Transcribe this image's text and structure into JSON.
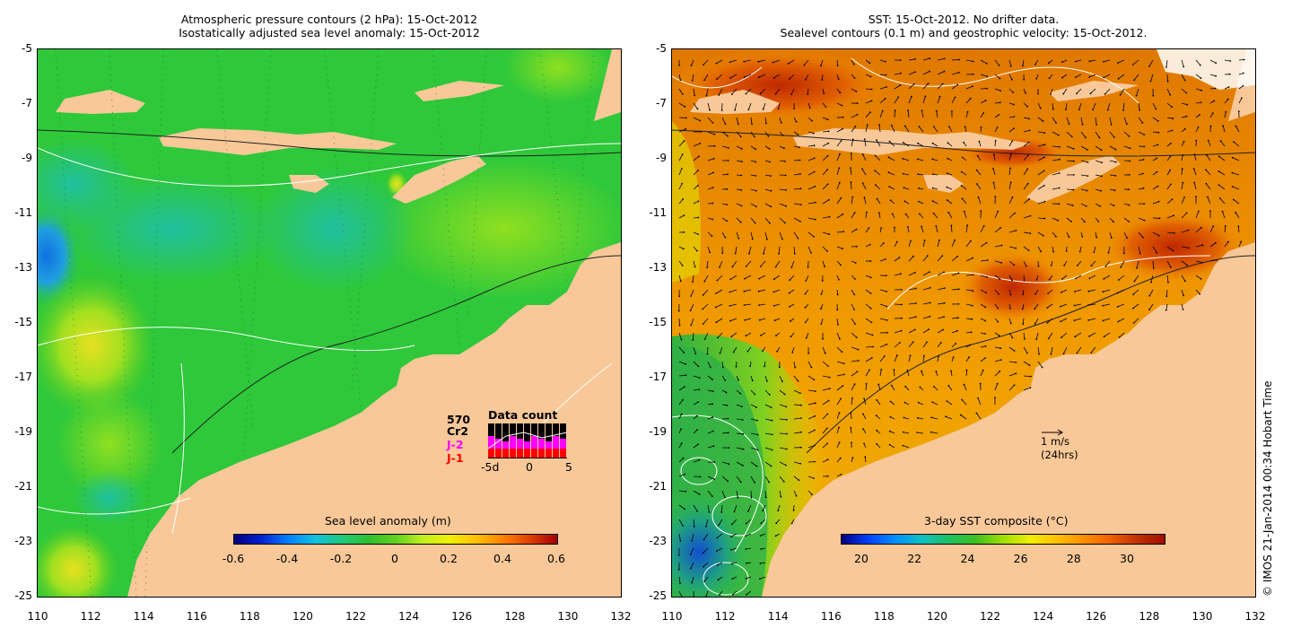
{
  "left_panel": {
    "title_line1": "Atmospheric pressure contours (2 hPa): 15-Oct-2012",
    "title_line2": "Isostatically adjusted sea level anomaly: 15-Oct-2012",
    "colorbar": {
      "title": "Sea level anomaly (m)",
      "ticks": [
        "-0.6",
        "-0.4",
        "-0.2",
        "0",
        "0.2",
        "0.4",
        "0.6"
      ],
      "cmap": [
        "#00007f",
        "#0020d0",
        "#0080ff",
        "#10c0e0",
        "#20c878",
        "#30c030",
        "#60d020",
        "#c0f020",
        "#f0f000",
        "#ffc000",
        "#ff8000",
        "#e04000",
        "#a00000"
      ]
    },
    "data_count": {
      "title": "Data count",
      "total": "570",
      "series": [
        {
          "name": "Cr2",
          "color": "#000000"
        },
        {
          "name": "J-2",
          "color": "#ff00ff"
        },
        {
          "name": "J-1",
          "color": "#ff0000"
        }
      ],
      "axis_ticks": [
        "-5d",
        "0",
        "5"
      ]
    }
  },
  "right_panel": {
    "title_line1": "SST: 15-Oct-2012. No drifter data.",
    "title_line2": "Sealevel contours (0.1 m) and geostrophic velocity: 15-Oct-2012.",
    "colorbar": {
      "title": "3-day SST composite (°C)",
      "ticks": [
        "20",
        "22",
        "24",
        "26",
        "28",
        "30"
      ],
      "cmap": [
        "#00007f",
        "#0040ff",
        "#0090ff",
        "#10c0c0",
        "#20c060",
        "#40c020",
        "#a0e000",
        "#f0f000",
        "#ffc000",
        "#ff9000",
        "#f06000",
        "#c03000",
        "#a01000"
      ]
    },
    "vector_key": {
      "label": "1 m/s",
      "sublabel": "(24hrs)"
    }
  },
  "axes": {
    "lat_ticks": [
      "-5",
      "-7",
      "-9",
      "-11",
      "-13",
      "-15",
      "-17",
      "-19",
      "-21",
      "-23",
      "-25"
    ],
    "lon_ticks": [
      "110",
      "112",
      "114",
      "116",
      "118",
      "120",
      "122",
      "124",
      "126",
      "128",
      "130",
      "132"
    ]
  },
  "credit": "© IMOS 21-Jan-2014 00:34 Hobart Time",
  "colors": {
    "land": "#f8c898",
    "sea_sla": "#2ec83a",
    "sea_sst": "#f0a000",
    "sst_warm": "#d05000",
    "sst_cool": "#20b030"
  }
}
